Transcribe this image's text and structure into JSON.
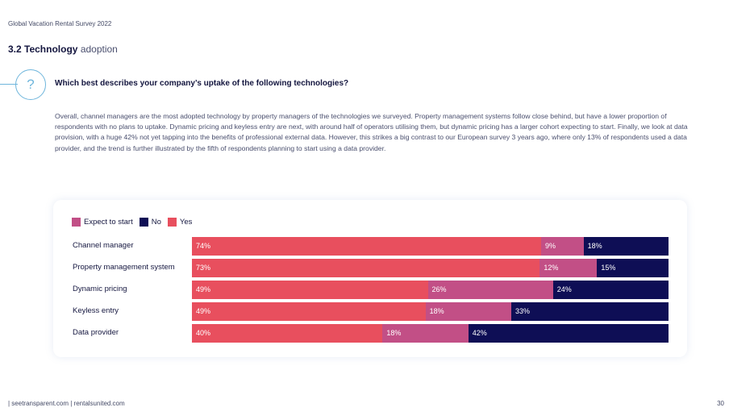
{
  "header": {
    "doc_title": "Global Vacation Rental Survey 2022"
  },
  "section": {
    "number_bold": "3.2 Technology",
    "light": "adoption"
  },
  "question": {
    "icon_glyph": "?",
    "text": "Which best describes your company’s uptake of the following technologies?"
  },
  "body": "Overall, channel managers are the most adopted technology by property managers of the technologies we surveyed. Property management systems follow close behind, but have a lower proportion of respondents with no plans to uptake. Dynamic pricing and keyless entry are next, with around half of operators utilising them, but dynamic pricing has a larger cohort expecting to start. Finally, we look at data provision, with a huge 42% not yet tapping into the benefits of professional external data. However, this strikes a big contrast to our European survey 3 years ago, where only 13% of respondents used a data provider, and the trend is further illustrated by the fifth of respondents planning to start using a data provider.",
  "colors": {
    "yes": "#e84f5e",
    "expect": "#c24f86",
    "no": "#0e0e55",
    "accent": "#6fb6dc"
  },
  "chart_data": {
    "type": "bar",
    "orientation": "horizontal",
    "stacked": true,
    "legend": [
      {
        "name": "Expect to start",
        "color": "#c24f86"
      },
      {
        "name": "No",
        "color": "#0e0e55"
      },
      {
        "name": "Yes",
        "color": "#e84f5e"
      }
    ],
    "categories": [
      "Channel manager",
      "Property management system",
      "Dynamic pricing",
      "Keyless entry",
      "Data provider"
    ],
    "series": [
      {
        "name": "Yes",
        "color": "#e84f5e",
        "values": [
          74,
          73,
          49,
          49,
          40
        ],
        "labels": [
          "74%",
          "73%",
          "49%",
          "49%",
          "40%"
        ]
      },
      {
        "name": "Expect to start",
        "color": "#c24f86",
        "values": [
          9,
          12,
          26,
          18,
          18
        ],
        "labels": [
          "9%",
          "12%",
          "26%",
          "18%",
          "18%"
        ]
      },
      {
        "name": "No",
        "color": "#0e0e55",
        "values": [
          18,
          15,
          24,
          33,
          42
        ],
        "labels": [
          "18%",
          "15%",
          "24%",
          "33%",
          "42%"
        ]
      }
    ]
  },
  "footer": {
    "links": "| seetransparent.com   | rentalsunited.com",
    "page_number": "30"
  }
}
